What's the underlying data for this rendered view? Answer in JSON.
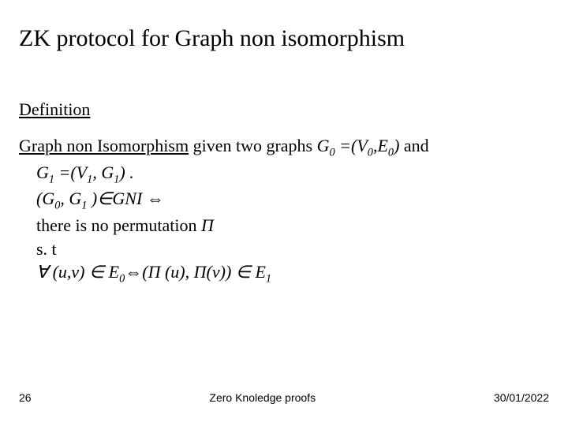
{
  "title": "ZK protocol for  Graph non isomorphism",
  "section_heading": "Definition",
  "line1": {
    "lead_u": "Graph non Isomorphism",
    "mid": " given two graphs ",
    "g0": "G",
    "eq": " =(",
    "v0": "V",
    "comma": ",",
    "e0": "E",
    "close": ")",
    "tail": " and"
  },
  "line2": {
    "g1": "G",
    "eq": " =(",
    "v1": "V",
    "comma": ", ",
    "g1b": "G",
    "close": ") ."
  },
  "line3": {
    "open": "(",
    "g0": "G",
    "comma": ", ",
    "g1": "G",
    "close": " )",
    "in": "∈",
    "gni": "GNI ",
    "iff": "⇔"
  },
  "line4": "there is no permutation ",
  "line4_pi": "Π",
  "line5": "s. t",
  "line6": {
    "forall": "∀",
    "uv": " (u,v) ",
    "in": "∈",
    "sp": " ",
    "E": "E",
    "iff": "⇔",
    "open": "(",
    "Pi1": "Π",
    "u": " (u), ",
    "Pi2": "Π",
    "v": "(v))  ",
    "in2": "∈",
    "E2": " E"
  },
  "sub0": "0",
  "sub1": "1",
  "footer": {
    "page": "26",
    "center": "Zero Knoledge proofs",
    "date": "30/01/2022"
  }
}
